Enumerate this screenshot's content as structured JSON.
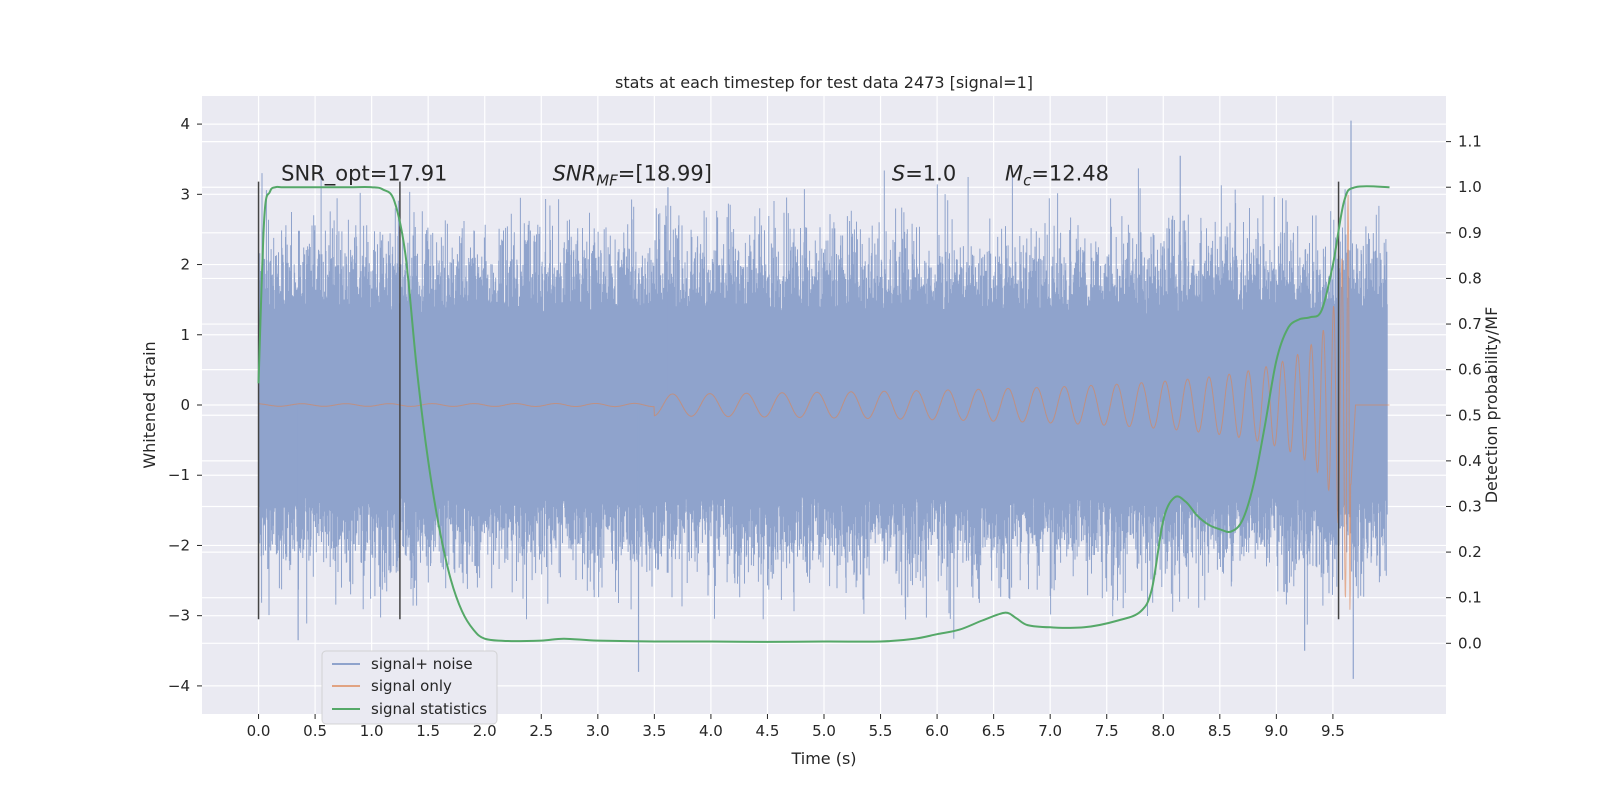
{
  "chart_data": {
    "type": "line",
    "title": "stats at each timestep for test data 2473 [signal=1]",
    "xlabel": "Time (s)",
    "ylabel": "Whitened strain",
    "y2label": "Detection probability/MF",
    "xlim": [
      -0.5,
      10.5
    ],
    "ylim": [
      -4.4,
      4.4
    ],
    "y2lim": [
      -0.155,
      1.2
    ],
    "x_ticks": [
      "0.0",
      "0.5",
      "1.0",
      "1.5",
      "2.0",
      "2.5",
      "3.0",
      "3.5",
      "4.0",
      "4.5",
      "5.0",
      "5.5",
      "6.0",
      "6.5",
      "7.0",
      "7.5",
      "8.0",
      "8.5",
      "9.0",
      "9.5"
    ],
    "y_ticks": [
      "4",
      "3",
      "2",
      "1",
      "0",
      "−1",
      "−2",
      "−3",
      "−4"
    ],
    "y2_ticks": [
      "1.1",
      "1.0",
      "0.9",
      "0.8",
      "0.7",
      "0.6",
      "0.5",
      "0.4",
      "0.3",
      "0.2",
      "0.1",
      "0.0"
    ],
    "grid": true,
    "legend_position": "lower-left",
    "colors": {
      "background": "#eaeaf2",
      "grid": "#ffffff",
      "noise": "#8fa3cc",
      "signal": "#dd8452",
      "stat": "#55a868",
      "vline": "#444444"
    },
    "series": [
      {
        "name": "signal+ noise",
        "style": "noisy band",
        "x_range": [
          0.0,
          9.98
        ],
        "envelope": [
          -1.3,
          1.3
        ],
        "peaks": [
          -3.9,
          4.05
        ]
      },
      {
        "name": "signal only",
        "style": "chirp",
        "x_range": [
          0.0,
          9.7
        ],
        "peak_time": 9.66,
        "peak_amplitude": 3.0
      },
      {
        "name": "signal statistics",
        "x": [
          0.0,
          0.05,
          0.1,
          0.15,
          0.2,
          0.3,
          0.5,
          0.8,
          1.0,
          1.1,
          1.2,
          1.3,
          1.4,
          1.5,
          1.6,
          1.7,
          1.8,
          1.9,
          2.0,
          2.2,
          2.5,
          2.7,
          3.0,
          3.5,
          4.0,
          4.5,
          5.0,
          5.5,
          5.8,
          6.0,
          6.2,
          6.4,
          6.6,
          6.7,
          6.8,
          7.0,
          7.3,
          7.6,
          7.8,
          7.9,
          8.0,
          8.1,
          8.2,
          8.3,
          8.4,
          8.5,
          8.6,
          8.7,
          8.8,
          8.9,
          9.0,
          9.1,
          9.2,
          9.3,
          9.4,
          9.5,
          9.6,
          9.7,
          10.0
        ],
        "y": [
          0.57,
          0.93,
          0.99,
          1.0,
          1.0,
          1.0,
          1.0,
          1.0,
          1.0,
          0.995,
          0.97,
          0.85,
          0.6,
          0.4,
          0.25,
          0.14,
          0.07,
          0.03,
          0.01,
          0.005,
          0.006,
          0.01,
          0.006,
          0.004,
          0.004,
          0.003,
          0.004,
          0.004,
          0.01,
          0.02,
          0.03,
          0.05,
          0.067,
          0.055,
          0.04,
          0.035,
          0.035,
          0.05,
          0.07,
          0.12,
          0.27,
          0.32,
          0.31,
          0.28,
          0.26,
          0.25,
          0.245,
          0.27,
          0.35,
          0.48,
          0.62,
          0.69,
          0.71,
          0.715,
          0.73,
          0.83,
          0.97,
          1.0,
          1.0
        ]
      }
    ],
    "vertical_lines": [
      0.0,
      1.25,
      9.55
    ],
    "vertical_lines_span": [
      -3.05,
      3.18
    ],
    "annotations": [
      {
        "text": "SNR_opt=17.91",
        "x": 0.2,
        "y": 3.2
      },
      {
        "text": "SNR",
        "sub": "MF",
        "suffix": "=[18.99]",
        "italic": true,
        "x": 2.6,
        "y": 3.2
      },
      {
        "text": "S",
        "sub": "",
        "suffix": "=1.0",
        "italic": true,
        "x": 5.6,
        "y": 3.2
      },
      {
        "text": "M",
        "sub": "c",
        "suffix": "=12.48",
        "italic": true,
        "x": 6.6,
        "y": 3.2
      }
    ]
  }
}
